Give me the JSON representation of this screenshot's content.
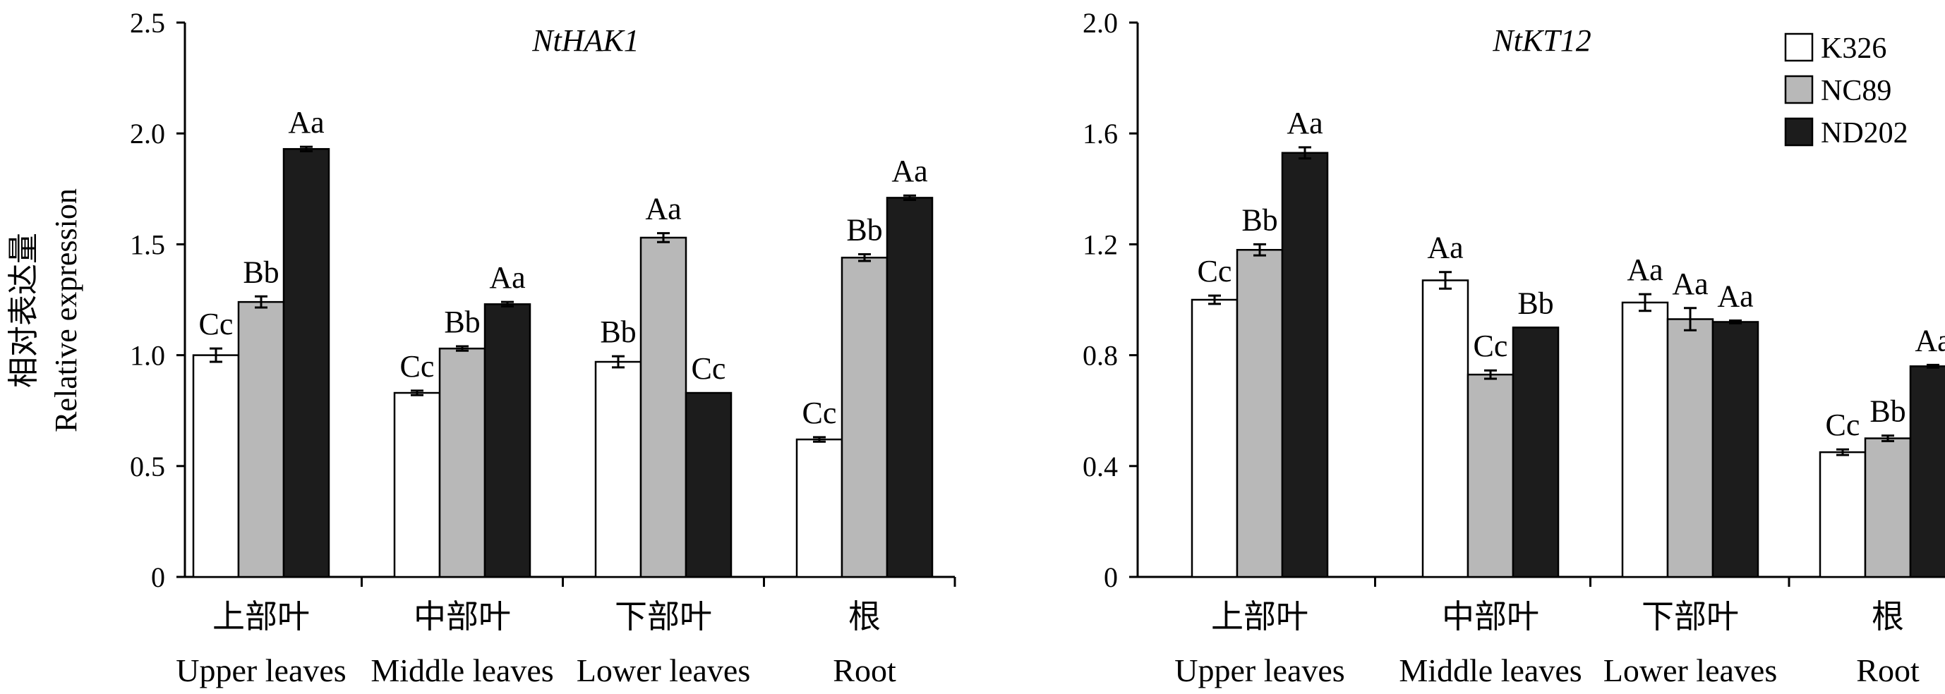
{
  "ylabel_cn": "相对表达量",
  "ylabel_en": "Relative expression",
  "legend": [
    {
      "name": "K326",
      "color": "#ffffff"
    },
    {
      "name": "NC89",
      "color": "#b8b8b8"
    },
    {
      "name": "ND202",
      "color": "#1c1c1c"
    }
  ],
  "chart_data": [
    {
      "type": "bar",
      "title": "NtHAK1",
      "ylim": [
        0,
        2.5
      ],
      "yticks": [
        "0",
        "0.5",
        "1.0",
        "1.5",
        "2.0",
        "2.5"
      ],
      "categories": [
        {
          "cn": "上部叶",
          "en": "Upper leaves"
        },
        {
          "cn": "中部叶",
          "en": "Middle leaves"
        },
        {
          "cn": "下部叶",
          "en": "Lower leaves"
        },
        {
          "cn": "根",
          "en": "Root"
        }
      ],
      "series": [
        {
          "name": "K326",
          "values": [
            1.0,
            0.83,
            0.97,
            0.62
          ],
          "errors": [
            0.03,
            0.01,
            0.025,
            0.01
          ],
          "labels": [
            "Cc",
            "Cc",
            "Bb",
            "Cc"
          ]
        },
        {
          "name": "NC89",
          "values": [
            1.24,
            1.03,
            1.53,
            1.44
          ],
          "errors": [
            0.025,
            0.01,
            0.02,
            0.015
          ],
          "labels": [
            "Bb",
            "Bb",
            "Aa",
            "Bb"
          ]
        },
        {
          "name": "ND202",
          "values": [
            1.93,
            1.23,
            0.83,
            1.71
          ],
          "errors": [
            0.01,
            0.01,
            0.0,
            0.01
          ],
          "labels": [
            "Aa",
            "Aa",
            "Cc",
            "Aa"
          ]
        }
      ]
    },
    {
      "type": "bar",
      "title": "NtKT12",
      "ylim": [
        0,
        2.0
      ],
      "yticks": [
        "0",
        "0.4",
        "0.8",
        "1.2",
        "1.6",
        "2.0"
      ],
      "categories": [
        {
          "cn": "上部叶",
          "en": "Upper leaves"
        },
        {
          "cn": "中部叶",
          "en": "Middle leaves"
        },
        {
          "cn": "下部叶",
          "en": "Lower leaves"
        },
        {
          "cn": "根",
          "en": "Root"
        }
      ],
      "series": [
        {
          "name": "K326",
          "values": [
            1.0,
            1.07,
            0.99,
            0.45
          ],
          "errors": [
            0.015,
            0.03,
            0.03,
            0.01
          ],
          "labels": [
            "Cc",
            "Aa",
            "Aa",
            "Cc"
          ]
        },
        {
          "name": "NC89",
          "values": [
            1.18,
            0.73,
            0.93,
            0.5
          ],
          "errors": [
            0.02,
            0.015,
            0.04,
            0.01
          ],
          "labels": [
            "Bb",
            "Cc",
            "Aa",
            "Bb"
          ]
        },
        {
          "name": "ND202",
          "values": [
            1.53,
            0.9,
            0.92,
            0.76
          ],
          "errors": [
            0.02,
            0.0,
            0.005,
            0.005
          ],
          "labels": [
            "Aa",
            "Bb",
            "Aa",
            "Aa"
          ]
        }
      ]
    }
  ]
}
